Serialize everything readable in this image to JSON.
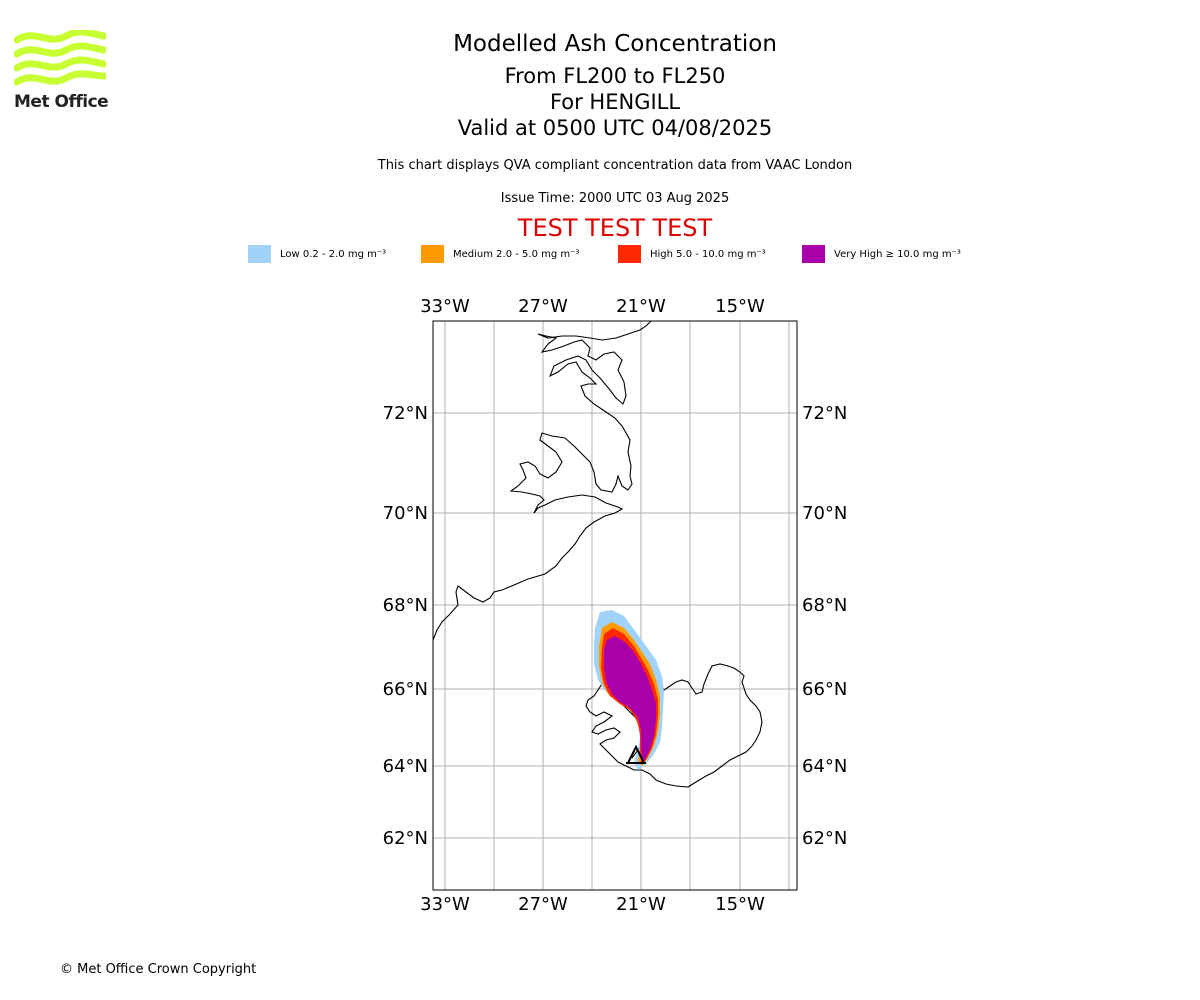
{
  "header": {
    "title": "Modelled Ash Concentration",
    "levels": "From FL200 to FL250",
    "volcano": "For HENGILL",
    "valid_time": "Valid at 0500 UTC 04/08/2025",
    "disclaimer": "This chart displays QVA compliant concentration data from VAAC London",
    "issue_time": "Issue Time: 2000 UTC 03 Aug 2025",
    "test_banner": "TEST TEST TEST",
    "test_color": "#dd0000"
  },
  "logo": {
    "text": "Met Office",
    "wave_color": "#c8ff32",
    "icon": "met-office-waves-icon"
  },
  "legend": [
    {
      "label": "Low 0.2 - 2.0 mg m⁻³",
      "color": "#a0d2fa"
    },
    {
      "label": "Medium 2.0 - 5.0 mg m⁻³",
      "color": "#ff9a00"
    },
    {
      "label": "High 5.0 - 10.0 mg m⁻³",
      "color": "#ff2800"
    },
    {
      "label": "Very High ≥ 10.0 mg m⁻³",
      "color": "#aa00aa"
    }
  ],
  "map": {
    "lon_labels": [
      "33°W",
      "27°W",
      "21°W",
      "15°W"
    ],
    "lat_labels": [
      "72°N",
      "70°N",
      "68°N",
      "66°N",
      "64°N",
      "62°N"
    ],
    "volcano_marker": "volcano-triangle-icon"
  },
  "footer": {
    "copyright": "© Met Office Crown Copyright"
  }
}
